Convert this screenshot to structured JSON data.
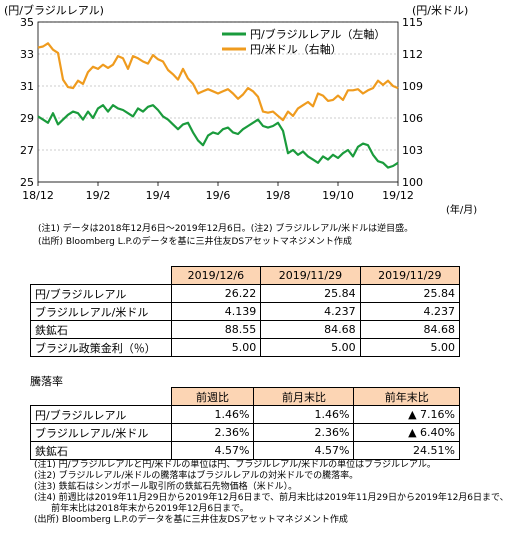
{
  "chart_data": {
    "type": "line",
    "left_axis_label": "(円/ブラジルレアル)",
    "right_axis_label": "(円/米ドル)",
    "x_unit_label": "(年/月)",
    "x_ticks": [
      "18/12",
      "19/2",
      "19/4",
      "19/6",
      "19/8",
      "19/10",
      "19/12"
    ],
    "left_ylim": [
      25,
      35
    ],
    "left_ticks": [
      "35",
      "33",
      "31",
      "29",
      "27",
      "25"
    ],
    "right_ylim": [
      100,
      115
    ],
    "right_ticks": [
      "115",
      "112",
      "109",
      "106",
      "103",
      "100"
    ],
    "legend": [
      "円/ブラジルレアル（左軸）",
      "円/米ドル（右軸）"
    ],
    "legend_position": "top-right",
    "colors": {
      "brl": "#1a9b3c",
      "usd": "#ef9b1e"
    },
    "series": [
      {
        "name": "円/ブラジルレアル（左軸）",
        "axis": "left",
        "values": [
          29.1,
          28.9,
          28.7,
          29.3,
          28.6,
          28.9,
          29.2,
          29.4,
          29.3,
          28.9,
          29.4,
          29.0,
          29.6,
          29.8,
          29.4,
          29.8,
          29.6,
          29.5,
          29.3,
          29.1,
          29.6,
          29.4,
          29.7,
          29.8,
          29.5,
          29.1,
          28.9,
          28.6,
          28.3,
          28.6,
          28.7,
          28.1,
          27.6,
          27.3,
          27.9,
          28.1,
          28.0,
          28.3,
          28.4,
          28.1,
          28.0,
          28.3,
          28.5,
          28.7,
          28.9,
          28.5,
          28.4,
          28.5,
          28.7,
          28.2,
          26.8,
          27.0,
          26.7,
          26.9,
          26.6,
          26.4,
          26.2,
          26.6,
          26.4,
          26.7,
          26.5,
          26.8,
          27.0,
          26.6,
          27.2,
          27.4,
          27.3,
          26.7,
          26.3,
          26.2,
          25.9,
          26.0,
          26.2
        ]
      },
      {
        "name": "円/米ドル（右軸）",
        "axis": "right",
        "values": [
          112.6,
          112.7,
          113.0,
          112.4,
          112.1,
          109.6,
          108.9,
          108.8,
          109.5,
          109.2,
          110.3,
          110.8,
          110.6,
          111.0,
          110.7,
          111.0,
          111.8,
          111.6,
          110.6,
          111.8,
          111.6,
          111.3,
          111.1,
          111.9,
          111.5,
          111.3,
          110.5,
          110.1,
          109.6,
          110.6,
          109.7,
          109.2,
          108.3,
          108.5,
          108.7,
          108.5,
          108.3,
          108.5,
          108.7,
          108.3,
          107.8,
          108.2,
          108.8,
          108.5,
          108.0,
          106.6,
          106.5,
          106.6,
          106.2,
          105.8,
          106.6,
          106.2,
          106.9,
          107.2,
          107.5,
          107.1,
          108.3,
          108.1,
          107.6,
          107.7,
          108.1,
          107.7,
          108.6,
          108.6,
          108.7,
          108.3,
          108.6,
          108.8,
          109.5,
          109.1,
          109.5,
          109.0,
          108.8
        ]
      }
    ]
  },
  "chart_notes": [
    "(注1) データは2018年12月6日～2019年12月6日。(注2) ブラジルレアル/米ドルは逆目盛。",
    "(出所) Bloomberg L.P.のデータを基に三井住友DSアセットマネジメント作成"
  ],
  "table1": {
    "headers": [
      "",
      "2019/12/6",
      "2019/11/29",
      "2019/11/29"
    ],
    "rows": [
      [
        "円/ブラジルレアル",
        "26.22",
        "25.84",
        "25.84"
      ],
      [
        "ブラジルレアル/米ドル",
        "4.139",
        "4.237",
        "4.237"
      ],
      [
        "鉄鉱石",
        "88.55",
        "84.68",
        "84.68"
      ],
      [
        "ブラジル政策金利（％）",
        "5.00",
        "5.00",
        "5.00"
      ]
    ]
  },
  "table2": {
    "title": "騰落率",
    "headers": [
      "",
      "前週比",
      "前月末比",
      "前年末比"
    ],
    "rows": [
      [
        "円/ブラジルレアル",
        "1.46%",
        "1.46%",
        "▲ 7.16%"
      ],
      [
        "ブラジルレアル/米ドル",
        "2.36%",
        "2.36%",
        "▲ 6.40%"
      ],
      [
        "鉄鉱石",
        "4.57%",
        "4.57%",
        "24.51%"
      ]
    ]
  },
  "footnotes": [
    "(注1) 円/ブラジルレアルと円/米ドルの単位は円、ブラジルレアル/米ドルの単位はブラジルレアル。",
    "(注2) ブラジルレアル/米ドルの騰落率はブラジルレアルの対米ドルでの騰落率。",
    "(注3) 鉄鉱石はシンガポール取引所の鉄鉱石先物価格（米ドル）。",
    "(注4) 前週比は2019年11月29日から2019年12月6日まで、前月末比は2019年11月29日から2019年12月6日まで、",
    "      前年末比は2018年末から2019年12月6日まで。",
    "(出所) Bloomberg L.P.のデータを基に三井住友DSアセットマネジメント作成"
  ]
}
